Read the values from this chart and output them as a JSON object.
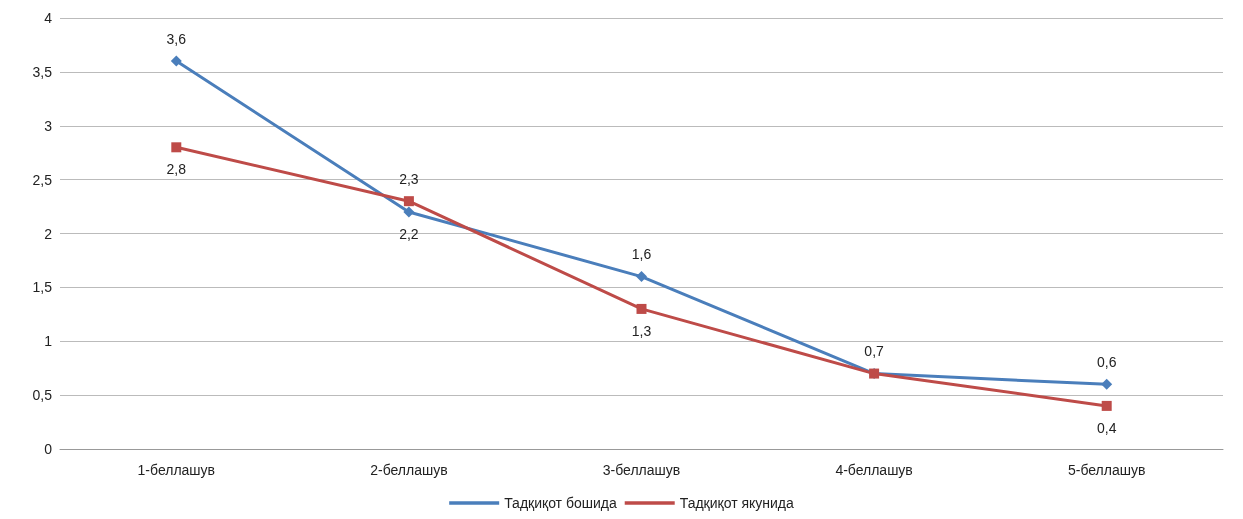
{
  "chart_data": {
    "type": "line",
    "categories": [
      "1-беллашув",
      "2-беллашув",
      "3-беллашув",
      "4-беллашув",
      "5-беллашув"
    ],
    "series": [
      {
        "name": "Тадқиқот бошида",
        "color": "#4a7ebb",
        "marker": "diamond",
        "values": [
          3.6,
          2.2,
          1.6,
          0.7,
          0.6
        ],
        "value_labels": [
          "3,6",
          "2,2",
          "1,6",
          "0,7",
          "0,6"
        ]
      },
      {
        "name": "Тадқиқот якунида",
        "color": "#be4b48",
        "marker": "square",
        "values": [
          2.8,
          2.3,
          1.3,
          0.7,
          0.4
        ],
        "value_labels": [
          "2,8",
          "2,3",
          "1,3",
          null,
          "0,4"
        ]
      }
    ],
    "ylim": [
      0,
      4
    ],
    "yticks": [
      0,
      {
        "value": 0.5,
        "label": "0,5"
      },
      1,
      {
        "value": 1.5,
        "label": "1,5"
      },
      2,
      {
        "value": 2.5,
        "label": "2,5"
      },
      3,
      {
        "value": 3.5,
        "label": "3,5"
      },
      4
    ],
    "grid": "y",
    "legend": "bottom",
    "line_style": "solid"
  }
}
